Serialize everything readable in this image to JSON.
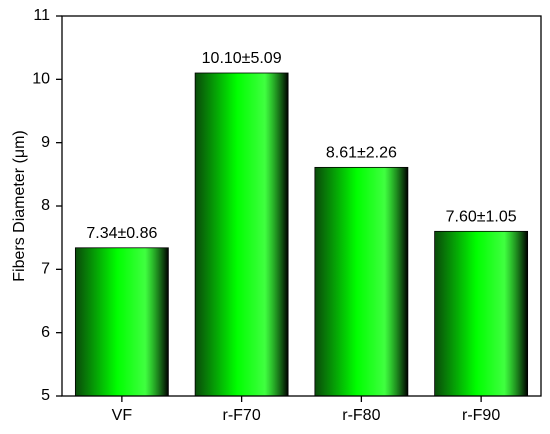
{
  "chart_data": {
    "type": "bar",
    "y_label": "Fibers Diameter (μm)",
    "categories": [
      "VF",
      "r-F70",
      "r-F80",
      "r-F90"
    ],
    "values": [
      7.34,
      10.1,
      8.61,
      7.6
    ],
    "value_labels": [
      "7.34±0.86",
      "10.10±5.09",
      "8.61±2.26",
      "7.60±1.05"
    ],
    "color": "#00ff00",
    "ylim": [
      5,
      11
    ],
    "yticks": [
      5,
      6,
      7,
      8,
      9,
      10,
      11
    ],
    "grid": false
  }
}
